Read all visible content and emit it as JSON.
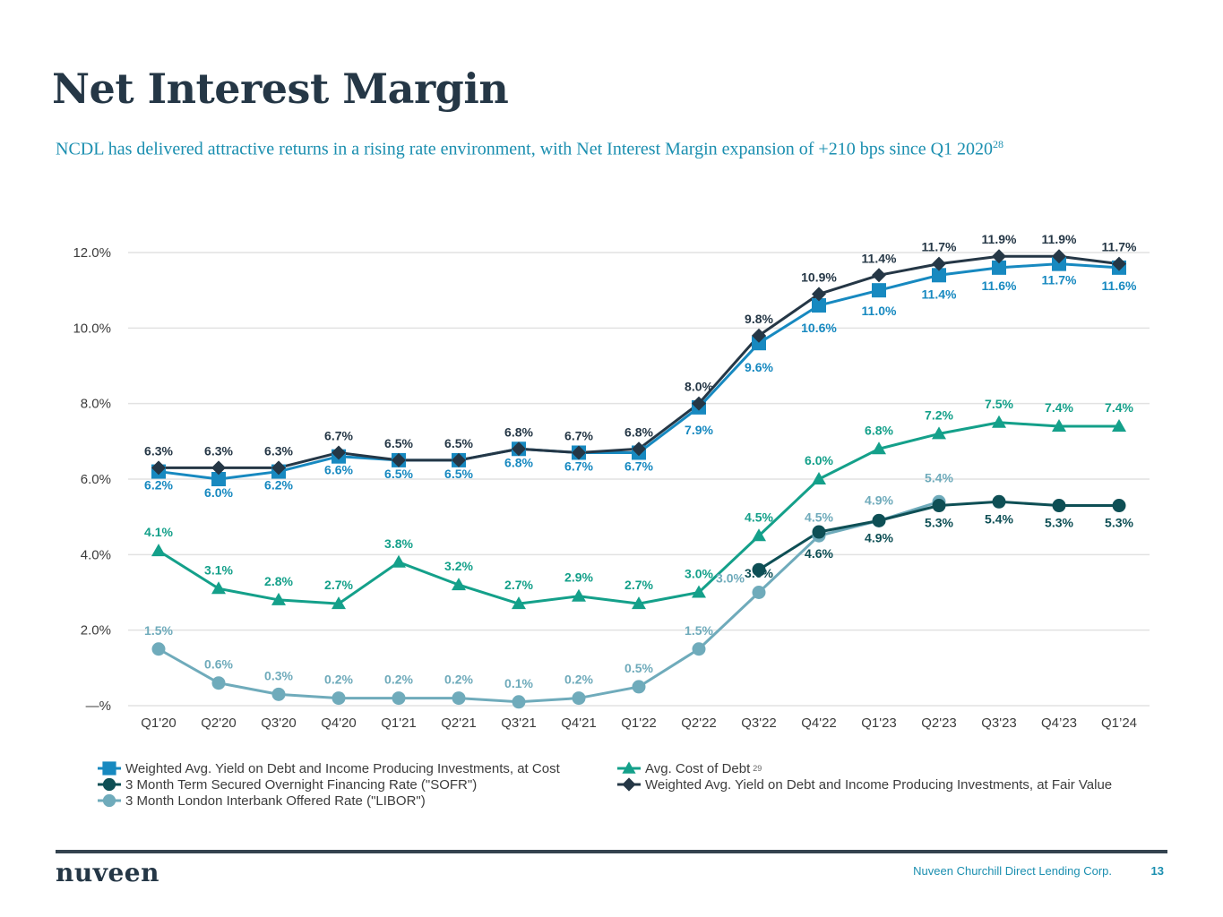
{
  "page": {
    "title": "Net Interest Margin",
    "subtitle": "NCDL has delivered attractive returns in a rising rate environment, with Net Interest Margin expansion of +210 bps since Q1 2020",
    "subtitle_footnote": "28",
    "footer_company": "Nuveen Churchill Direct Lending Corp.",
    "page_number": "13",
    "logo_text": "nuveen"
  },
  "chart_data": {
    "type": "line",
    "title": "",
    "xlabel": "",
    "ylabel": "",
    "ylim": [
      0,
      12
    ],
    "grid": true,
    "legend_position": "bottom",
    "y_ticks": [
      {
        "value": 0,
        "label": "—%"
      },
      {
        "value": 2,
        "label": "2.0%"
      },
      {
        "value": 4,
        "label": "4.0%"
      },
      {
        "value": 6,
        "label": "6.0%"
      },
      {
        "value": 8,
        "label": "8.0%"
      },
      {
        "value": 10,
        "label": "10.0%"
      },
      {
        "value": 12,
        "label": "12.0%"
      }
    ],
    "categories": [
      "Q1'20",
      "Q2'20",
      "Q3'20",
      "Q4'20",
      "Q1'21",
      "Q2'21",
      "Q3'21",
      "Q4'21",
      "Q1'22",
      "Q2'22",
      "Q3'22",
      "Q4'22",
      "Q1'23",
      "Q2'23",
      "Q3'23",
      "Q4’23",
      "Q1’24"
    ],
    "series": [
      {
        "name": "Weighted Avg. Yield on Debt and Income Producing Investments, at Cost",
        "key": "yield-cost",
        "marker": "square",
        "color": "#1789c0",
        "label_position": "below",
        "values": [
          6.2,
          6.0,
          6.2,
          6.6,
          6.5,
          6.5,
          6.8,
          6.7,
          6.7,
          7.9,
          9.6,
          10.6,
          11.0,
          11.4,
          11.6,
          11.7,
          11.6
        ],
        "labels": [
          "6.2%",
          "6.0%",
          "6.2%",
          "6.6%",
          "6.5%",
          "6.5%",
          "6.8%",
          "6.7%",
          "6.7%",
          "7.9%",
          "9.6%",
          "10.6%",
          "11.0%",
          "11.4%",
          "11.6%",
          "11.7%",
          "11.6%"
        ]
      },
      {
        "name": "Avg. Cost of Debt",
        "footnote": "29",
        "key": "cost-of-debt",
        "marker": "triangle",
        "color": "#14a08a",
        "label_position": "above",
        "values": [
          4.1,
          3.1,
          2.8,
          2.7,
          3.8,
          3.2,
          2.7,
          2.9,
          2.7,
          3.0,
          4.5,
          6.0,
          6.8,
          7.2,
          7.5,
          7.4,
          7.4
        ],
        "labels": [
          "4.1%",
          "3.1%",
          "2.8%",
          "2.7%",
          "3.8%",
          "3.2%",
          "2.7%",
          "2.9%",
          "2.7%",
          "3.0%",
          "4.5%",
          "6.0%",
          "6.8%",
          "7.2%",
          "7.5%",
          "7.4%",
          "7.4%"
        ]
      },
      {
        "name": "3 Month Term Secured Overnight Financing Rate (\"SOFR\")",
        "key": "sofr",
        "marker": "circle",
        "color": "#0e4f55",
        "label_position": "below",
        "values": [
          null,
          null,
          null,
          null,
          null,
          null,
          null,
          null,
          null,
          null,
          3.6,
          4.6,
          4.9,
          5.3,
          5.4,
          5.3,
          5.3
        ],
        "labels": [
          null,
          null,
          null,
          null,
          null,
          null,
          null,
          null,
          null,
          null,
          "3.6%",
          "4.6%",
          "4.9%",
          "5.3%",
          "5.4%",
          "5.3%",
          "5.3%"
        ]
      },
      {
        "name": "Weighted Avg. Yield on Debt and Income Producing Investments, at Fair Value",
        "key": "yield-fair",
        "marker": "diamond",
        "color": "#253746",
        "label_position": "above",
        "values": [
          6.3,
          6.3,
          6.3,
          6.7,
          6.5,
          6.5,
          6.8,
          6.7,
          6.8,
          8.0,
          9.8,
          10.9,
          11.4,
          11.7,
          11.9,
          11.9,
          11.7
        ],
        "labels": [
          "6.3%",
          "6.3%",
          "6.3%",
          "6.7%",
          "6.5%",
          "6.5%",
          "6.8%",
          "6.7%",
          "6.8%",
          "8.0%",
          "9.8%",
          "10.9%",
          "11.4%",
          "11.7%",
          "11.9%",
          "11.9%",
          "11.7%"
        ]
      },
      {
        "name": "3 Month London Interbank Offered Rate (\"LIBOR\")",
        "key": "libor",
        "marker": "circle",
        "color": "#6fabbb",
        "label_position": "above",
        "values": [
          1.5,
          0.6,
          0.3,
          0.2,
          0.2,
          0.2,
          0.1,
          0.2,
          0.5,
          1.5,
          3.0,
          4.5,
          4.9,
          5.4,
          null,
          null,
          null
        ],
        "labels": [
          "1.5%",
          "0.6%",
          "0.3%",
          "0.2%",
          "0.2%",
          "0.2%",
          "0.1%",
          "0.2%",
          "0.5%",
          "1.5%",
          "3.0%",
          "4.5%",
          "4.9%",
          "5.4%",
          null,
          null,
          null
        ]
      }
    ],
    "legend_order": [
      "yield-cost",
      "cost-of-debt",
      "sofr",
      "yield-fair",
      "libor"
    ]
  }
}
